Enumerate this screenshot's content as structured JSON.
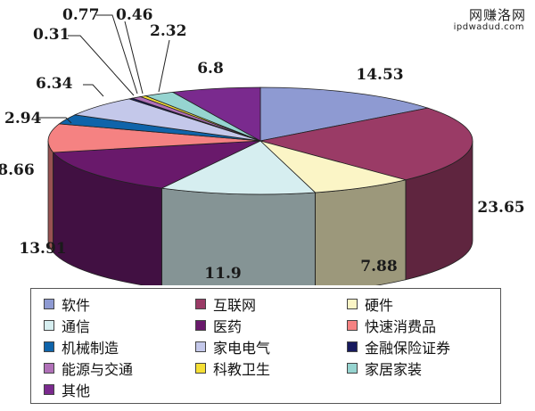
{
  "watermark": {
    "line1": "网赚洛网",
    "line2": "ipdwadud.com"
  },
  "chart_data": {
    "type": "pie",
    "categories": [
      "软件",
      "互联网",
      "硬件",
      "通信",
      "医药",
      "快速消费品",
      "机械制造",
      "家电电气",
      "金融保险证券",
      "能源与交通",
      "科教卫生",
      "家居家装",
      "其他"
    ],
    "values": [
      14.53,
      23.65,
      7.88,
      11.9,
      13.91,
      8.66,
      2.94,
      6.34,
      0.31,
      0.77,
      0.46,
      2.32,
      6.8
    ],
    "labels": [
      "14.53",
      "23.65",
      "7.88",
      "11.9",
      "13.91",
      "8.66",
      "2.94",
      "6.34",
      "0.31",
      "0.77",
      "0.46",
      "2.32",
      "6.8"
    ],
    "colors": [
      "#8e9ad2",
      "#9a3b66",
      "#fbf5c6",
      "#d6eef0",
      "#69196b",
      "#f58282",
      "#0f64aa",
      "#c4c8ea",
      "#171a5e",
      "#b070b8",
      "#f5df35",
      "#96d4d0",
      "#7a2a8e"
    ],
    "legend_position": "bottom",
    "style": "3d-pie"
  }
}
